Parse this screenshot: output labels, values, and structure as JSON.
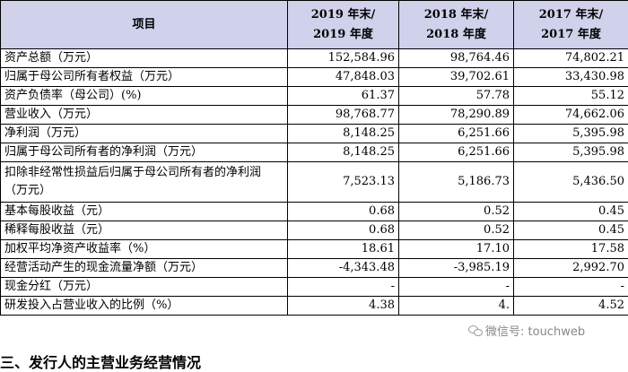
{
  "table": {
    "headers": [
      "项目",
      "2019 年末/\n2019 年度",
      "2018 年末/\n2018 年度",
      "2017 年末/\n2017 年度"
    ],
    "rows": [
      {
        "label": "资产总额（万元）",
        "values": [
          "152,584.96",
          "98,764.46",
          "74,802.21"
        ]
      },
      {
        "label": "归属于母公司所有者权益（万元）",
        "values": [
          "47,848.03",
          "39,702.61",
          "33,430.98"
        ]
      },
      {
        "label": "资产负债率（母公司）(%)",
        "values": [
          "61.37",
          "57.78",
          "55.12"
        ]
      },
      {
        "label": "营业收入（万元）",
        "values": [
          "98,768.77",
          "78,290.89",
          "74,662.06"
        ]
      },
      {
        "label": "净利润（万元）",
        "values": [
          "8,148.25",
          "6,251.66",
          "5,395.98"
        ]
      },
      {
        "label": "归属于母公司所有者的净利润（万元）",
        "values": [
          "8,148.25",
          "6,251.66",
          "5,395.98"
        ]
      },
      {
        "label": "扣除非经常性损益后归属于母公司所有者的净利润（万元）",
        "values": [
          "7,523.13",
          "5,186.73",
          "5,436.50"
        ]
      },
      {
        "label": "基本每股收益（元）",
        "values": [
          "0.68",
          "0.52",
          "0.45"
        ]
      },
      {
        "label": "稀释每股收益（元）",
        "values": [
          "0.68",
          "0.52",
          "0.45"
        ]
      },
      {
        "label": "加权平均净资产收益率（%）",
        "values": [
          "18.61",
          "17.10",
          "17.58"
        ]
      },
      {
        "label": "经营活动产生的现金流量净额（万元）",
        "values": [
          "-4,343.48",
          "-3,985.19",
          "2,992.70"
        ]
      },
      {
        "label": "现金分红（万元）",
        "values": [
          "-",
          "-",
          "-"
        ]
      },
      {
        "label": "研发投入占营业收入的比例（%）",
        "values": [
          "4.38",
          "4.",
          "4.52"
        ]
      }
    ]
  },
  "watermark": {
    "text": "微信号: touchweb",
    "icon": "wechat-icon"
  },
  "footer_heading": "三、发行人的主营业务经营情况"
}
